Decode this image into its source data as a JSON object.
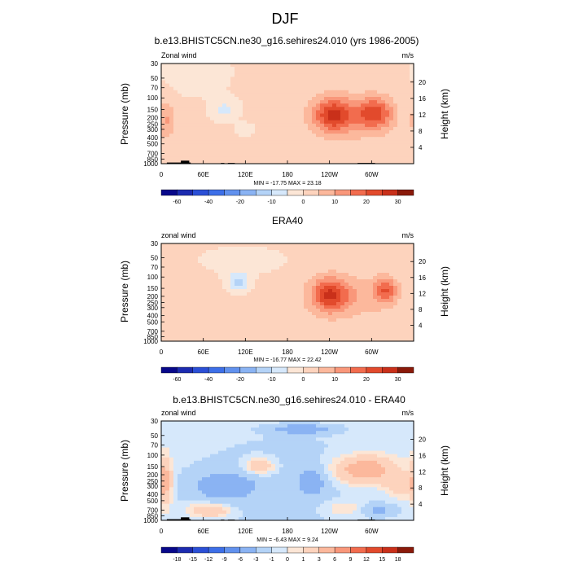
{
  "figure": {
    "title": "DJF"
  },
  "colors": {
    "palette": [
      "#08088a",
      "#1c2bb0",
      "#2b4fd6",
      "#3d6fe8",
      "#6191ee",
      "#8ab3f3",
      "#b4d3f7",
      "#d6e8fb",
      "#fce6d6",
      "#fdd3bd",
      "#fcb89c",
      "#f9977a",
      "#f26c4e",
      "#e24a2c",
      "#c9301a",
      "#8a1a0a"
    ],
    "land": "#000000"
  },
  "chart_data": [
    {
      "type": "heatmap",
      "title": "b.e13.BHISTC5CN.ne30_g16.sehires24.010 (yrs 1986-2005)",
      "left_label": "Zonal wind",
      "right_label": "m/s",
      "ylabel": "Pressure (mb)",
      "ylabel_right": "Height (km)",
      "x_ticks": [
        "0",
        "60E",
        "120E",
        "180",
        "120W",
        "60W"
      ],
      "y_ticks": [
        "30",
        "50",
        "70",
        "100",
        "150",
        "200",
        "250",
        "300",
        "400",
        "500",
        "700",
        "850",
        "1000"
      ],
      "y_right_ticks": [
        "20",
        "16",
        "12",
        "8",
        "4"
      ],
      "minmax": "MIN = -17.75  MAX = 23.18",
      "colorbar_ticks": [
        "-60",
        "-40",
        "-20",
        "-10",
        "0",
        "10",
        "20",
        "30"
      ],
      "xlim_degrees_east": [
        0,
        360
      ],
      "plim_mb": [
        1000,
        30
      ],
      "features": [
        {
          "lon": 160,
          "p": 400,
          "value": 1,
          "sx": 200,
          "sy": 2.2
        },
        {
          "lon": 90,
          "p": 150,
          "value": -7,
          "sx": 18,
          "sy": 0.35
        },
        {
          "lon": 50,
          "p": 50,
          "value": -2,
          "sx": 40,
          "sy": 0.6
        },
        {
          "lon": 120,
          "p": 300,
          "value": -2.5,
          "sx": 14,
          "sy": 0.25
        },
        {
          "lon": 245,
          "p": 180,
          "value": 21,
          "sx": 28,
          "sy": 0.6
        },
        {
          "lon": 305,
          "p": 170,
          "value": 19,
          "sx": 24,
          "sy": 0.55
        },
        {
          "lon": 275,
          "p": 200,
          "value": 7,
          "sx": 60,
          "sy": 0.85
        },
        {
          "lon": 8,
          "p": 220,
          "value": 9,
          "sx": 12,
          "sy": 0.7
        },
        {
          "lon": 70,
          "p": 750,
          "value": 4,
          "sx": 40,
          "sy": 0.25
        },
        {
          "lon": 240,
          "p": 800,
          "value": 3.5,
          "sx": 70,
          "sy": 0.3
        }
      ]
    },
    {
      "type": "heatmap",
      "title": "ERA40",
      "left_label": "zonal wind",
      "right_label": "m/s",
      "ylabel": "Pressure (mb)",
      "ylabel_right": "Height (km)",
      "x_ticks": [
        "0",
        "60E",
        "120E",
        "180",
        "120W",
        "60W"
      ],
      "y_ticks": [
        "30",
        "50",
        "70",
        "100",
        "150",
        "200",
        "250",
        "300",
        "400",
        "500",
        "700",
        "850",
        "1000"
      ],
      "y_right_ticks": [
        "20",
        "16",
        "12",
        "8",
        "4"
      ],
      "minmax": "MIN = -16.77  MAX = 22.42",
      "colorbar_ticks": [
        "-60",
        "-40",
        "-20",
        "-10",
        "0",
        "10",
        "20",
        "30"
      ],
      "xlim_degrees_east": [
        0,
        360
      ],
      "plim_mb": [
        1000,
        30
      ],
      "features": [
        {
          "lon": 160,
          "p": 300,
          "value": 2,
          "sx": 200,
          "sy": 2.2
        },
        {
          "lon": 110,
          "p": 120,
          "value": -13,
          "sx": 16,
          "sy": 0.35
        },
        {
          "lon": 120,
          "p": 60,
          "value": -3,
          "sx": 60,
          "sy": 0.5
        },
        {
          "lon": 240,
          "p": 190,
          "value": 22,
          "sx": 26,
          "sy": 0.6
        },
        {
          "lon": 320,
          "p": 160,
          "value": 17,
          "sx": 16,
          "sy": 0.45
        },
        {
          "lon": 280,
          "p": 200,
          "value": 6,
          "sx": 55,
          "sy": 0.8
        },
        {
          "lon": 70,
          "p": 780,
          "value": 3,
          "sx": 40,
          "sy": 0.25
        },
        {
          "lon": 250,
          "p": 850,
          "value": 3,
          "sx": 60,
          "sy": 0.25
        }
      ]
    },
    {
      "type": "heatmap",
      "title": "b.e13.BHISTC5CN.ne30_g16.sehires24.010 - ERA40",
      "left_label": "zonal wind",
      "right_label": "m/s",
      "ylabel": "Pressure (mb)",
      "ylabel_right": "Height (km)",
      "x_ticks": [
        "0",
        "60E",
        "120E",
        "180",
        "120W",
        "60W"
      ],
      "y_ticks": [
        "30",
        "50",
        "70",
        "100",
        "150",
        "200",
        "250",
        "300",
        "400",
        "500",
        "700",
        "850",
        "1000"
      ],
      "y_right_ticks": [
        "20",
        "16",
        "12",
        "8",
        "4"
      ],
      "minmax": "MIN = -6.43  MAX =  9.24",
      "colorbar_ticks": [
        "-18",
        "-15",
        "-12",
        "-9",
        "-6",
        "-3",
        "-1",
        "0",
        "1",
        "3",
        "6",
        "9",
        "12",
        "15",
        "18"
      ],
      "xlim_degrees_east": [
        0,
        360
      ],
      "plim_mb": [
        1000,
        30
      ],
      "features": [
        {
          "lon": 180,
          "p": 300,
          "value": -1.6,
          "sx": 200,
          "sy": 2.5
        },
        {
          "lon": 90,
          "p": 300,
          "value": -4,
          "sx": 45,
          "sy": 0.5
        },
        {
          "lon": 200,
          "p": 40,
          "value": -5,
          "sx": 40,
          "sy": 0.15
        },
        {
          "lon": 215,
          "p": 250,
          "value": -3.5,
          "sx": 20,
          "sy": 0.5
        },
        {
          "lon": 140,
          "p": 150,
          "value": 4,
          "sx": 22,
          "sy": 0.3
        },
        {
          "lon": 290,
          "p": 170,
          "value": 6,
          "sx": 45,
          "sy": 0.5
        },
        {
          "lon": 5,
          "p": 250,
          "value": 5,
          "sx": 10,
          "sy": 0.8
        },
        {
          "lon": 70,
          "p": 700,
          "value": 4,
          "sx": 30,
          "sy": 0.25
        },
        {
          "lon": 260,
          "p": 650,
          "value": 2,
          "sx": 30,
          "sy": 0.3
        },
        {
          "lon": 310,
          "p": 700,
          "value": -3,
          "sx": 20,
          "sy": 0.2
        },
        {
          "lon": 340,
          "p": 300,
          "value": 3,
          "sx": 20,
          "sy": 0.4
        }
      ]
    }
  ]
}
